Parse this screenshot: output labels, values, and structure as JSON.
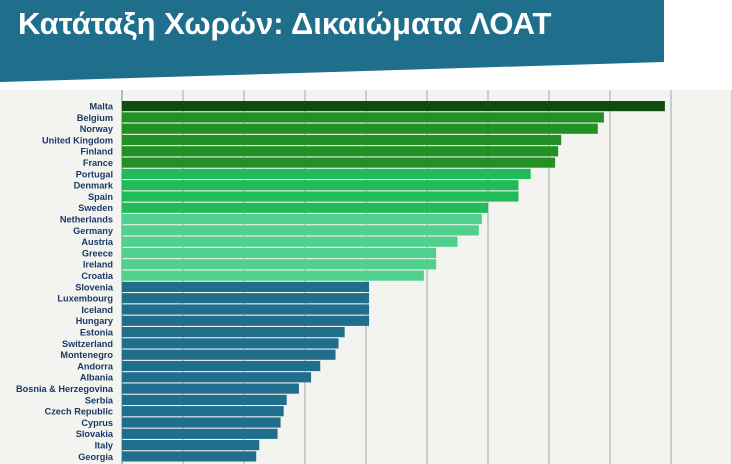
{
  "page": {
    "title": "Κατάταξη Χωρών: Δικαιώματα ΛΟΑΤ"
  },
  "chart_data": {
    "type": "bar",
    "orientation": "horizontal",
    "title": "",
    "xlabel": "",
    "ylabel": "",
    "xlim": [
      0,
      100
    ],
    "grid": true,
    "categories": [
      "Malta",
      "Belgium",
      "Norway",
      "United Kingdom",
      "Finland",
      "France",
      "Portugal",
      "Denmark",
      "Spain",
      "Sweden",
      "Netherlands",
      "Germany",
      "Austria",
      "Greece",
      "Ireland",
      "Croatia",
      "Slovenia",
      "Luxembourg",
      "Iceland",
      "Hungary",
      "Estonia",
      "Switzerland",
      "Montenegro",
      "Andorra",
      "Albania",
      "Bosnia & Herzegovina",
      "Serbia",
      "Czech Republic",
      "Cyprus",
      "Slovakia",
      "Italy",
      "Georgia"
    ],
    "values": [
      89,
      79,
      78,
      72,
      71.5,
      71,
      67,
      65,
      65,
      60,
      59,
      58.5,
      55,
      51.5,
      51.5,
      49.5,
      40.5,
      40.5,
      40.5,
      40.5,
      36.5,
      35.5,
      35,
      32.5,
      31,
      29,
      27,
      26.5,
      26,
      25.5,
      22.5,
      22
    ],
    "colors": [
      "#0f4d0f",
      "#239023",
      "#239023",
      "#239023",
      "#239023",
      "#239023",
      "#22bb5a",
      "#22bb5a",
      "#22bb5a",
      "#22bb5a",
      "#51d08d",
      "#51d08d",
      "#51d08d",
      "#51d08d",
      "#51d08d",
      "#51d08d",
      "#1f6e8c",
      "#1f6e8c",
      "#1f6e8c",
      "#1f6e8c",
      "#1f6e8c",
      "#1f6e8c",
      "#1f6e8c",
      "#1f6e8c",
      "#1f6e8c",
      "#1f6e8c",
      "#1f6e8c",
      "#1f6e8c",
      "#1f6e8c",
      "#1f6e8c",
      "#1f6e8c",
      "#1f6e8c"
    ],
    "label_color": "#1a3a66",
    "grid_color": "#7a9aa8"
  }
}
